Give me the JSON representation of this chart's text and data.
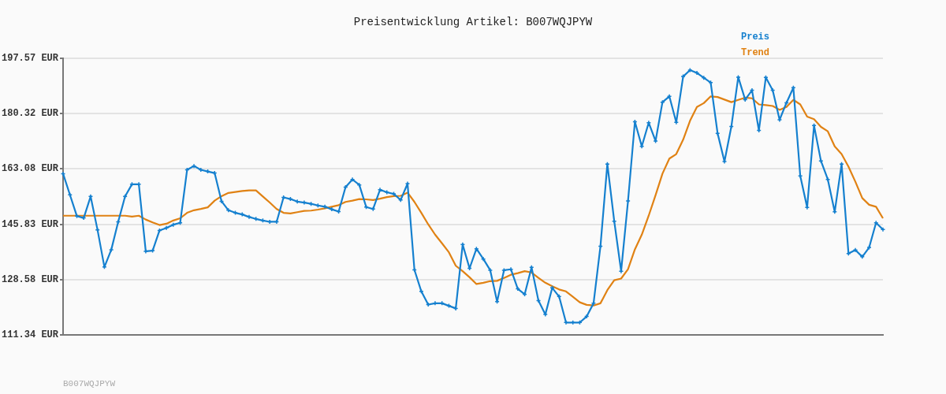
{
  "chart_data": {
    "type": "line",
    "title": "Preisentwicklung Artikel: B007WQJPYW",
    "categories": [
      null,
      null,
      null,
      null,
      null,
      null,
      null,
      null,
      null,
      null,
      null,
      null,
      null,
      null,
      null,
      null,
      null,
      null,
      null,
      null,
      null,
      null,
      null,
      null,
      null,
      null,
      null,
      null,
      null,
      null,
      null,
      null,
      null,
      null,
      null,
      null,
      null,
      null,
      null,
      null,
      null,
      null,
      null,
      null,
      null,
      null,
      null,
      null,
      null,
      null,
      null,
      null,
      null,
      null,
      null,
      null,
      null,
      null,
      null,
      null,
      null,
      null,
      null,
      null,
      null,
      null,
      null,
      null,
      null,
      null,
      null,
      null,
      null,
      null,
      null,
      null,
      null,
      null,
      null,
      null,
      null,
      null,
      null,
      null,
      null,
      null,
      null,
      null,
      null,
      null,
      null,
      null,
      null,
      null,
      null,
      null,
      null,
      null,
      null,
      null,
      null,
      null,
      null,
      null,
      null,
      null,
      null,
      null,
      null,
      null,
      null,
      null,
      null,
      null,
      null,
      null,
      null,
      null,
      null,
      null
    ],
    "series": [
      {
        "name": "Preis",
        "color": "#1580cf",
        "marker": "cross",
        "values": [
          161.6,
          155.0,
          148.4,
          147.8,
          154.5,
          144.1,
          132.5,
          137.9,
          146.6,
          154.5,
          158.3,
          158.3,
          137.4,
          137.6,
          143.9,
          144.7,
          145.7,
          146.3,
          162.8,
          164.0,
          162.8,
          162.3,
          161.8,
          153.0,
          150.2,
          149.4,
          148.9,
          148.1,
          147.5,
          147.0,
          146.6,
          146.6,
          154.2,
          153.7,
          152.9,
          152.6,
          152.2,
          151.7,
          151.3,
          150.5,
          149.8,
          157.4,
          159.8,
          158.1,
          151.2,
          150.6,
          156.6,
          155.8,
          155.3,
          153.4,
          158.5,
          131.6,
          124.9,
          120.8,
          121.2,
          121.2,
          120.4,
          119.6,
          139.5,
          132.1,
          138.2,
          135.0,
          131.5,
          121.7,
          131.5,
          131.8,
          125.7,
          124.0,
          132.4,
          122.0,
          117.7,
          126.0,
          123.3,
          115.2,
          115.2,
          115.2,
          117.1,
          121.2,
          139.0,
          164.6,
          146.8,
          131.2,
          153.1,
          177.8,
          170.1,
          177.5,
          171.8,
          183.9,
          185.7,
          177.6,
          191.9,
          193.9,
          193.0,
          191.5,
          190.0,
          174.2,
          165.4,
          176.3,
          191.7,
          184.7,
          187.6,
          175.1,
          191.6,
          187.6,
          178.4,
          183.7,
          188.4,
          160.9,
          151.1,
          176.6,
          165.6,
          159.8,
          149.7,
          164.6,
          136.7,
          137.8,
          135.7,
          138.6,
          146.3,
          144.2
        ]
      },
      {
        "name": "Trend",
        "color": "#e08214",
        "marker": "none",
        "values": [
          148.5,
          148.5,
          148.5,
          148.5,
          148.5,
          148.5,
          148.5,
          148.5,
          148.5,
          148.5,
          148.2,
          148.5,
          147.3,
          146.4,
          145.6,
          146.0,
          147.0,
          147.7,
          149.4,
          150.2,
          150.6,
          151.1,
          153.2,
          154.6,
          155.6,
          155.9,
          156.2,
          156.4,
          156.4,
          154.5,
          152.6,
          150.6,
          149.4,
          149.2,
          149.6,
          150.0,
          150.1,
          150.4,
          150.8,
          151.3,
          151.8,
          152.8,
          153.2,
          153.7,
          153.6,
          153.4,
          153.8,
          154.3,
          154.6,
          154.7,
          155.7,
          152.8,
          149.4,
          145.8,
          142.6,
          139.9,
          137.1,
          132.9,
          131.2,
          129.3,
          127.2,
          127.6,
          128.1,
          128.2,
          129.1,
          130.1,
          130.6,
          131.2,
          130.8,
          129.1,
          127.6,
          126.5,
          125.5,
          124.9,
          123.2,
          121.5,
          120.7,
          120.5,
          121.2,
          125.3,
          128.4,
          128.9,
          131.8,
          138.0,
          142.6,
          148.5,
          154.9,
          161.6,
          166.3,
          167.7,
          172.2,
          178.1,
          182.4,
          183.6,
          185.7,
          185.5,
          184.7,
          183.9,
          184.6,
          185.3,
          185.1,
          183.2,
          183.0,
          182.7,
          181.5,
          182.4,
          184.6,
          183.2,
          179.4,
          178.6,
          176.2,
          174.8,
          170.1,
          167.7,
          163.8,
          159.1,
          154.0,
          151.9,
          151.3,
          147.7
        ]
      }
    ],
    "ylim": [
      111.34,
      197.57
    ],
    "yticks": [
      {
        "value": 111.34,
        "label": "111.34 EUR"
      },
      {
        "value": 128.58,
        "label": "128.58 EUR"
      },
      {
        "value": 145.83,
        "label": "145.83 EUR"
      },
      {
        "value": 163.08,
        "label": "163.08 EUR"
      },
      {
        "value": 180.32,
        "label": "180.32 EUR"
      },
      {
        "value": 197.57,
        "label": "197.57 EUR"
      }
    ],
    "grid": "y",
    "legend": "top right",
    "line_style": "solid",
    "annotations": [
      "B007WQJPYW"
    ]
  }
}
